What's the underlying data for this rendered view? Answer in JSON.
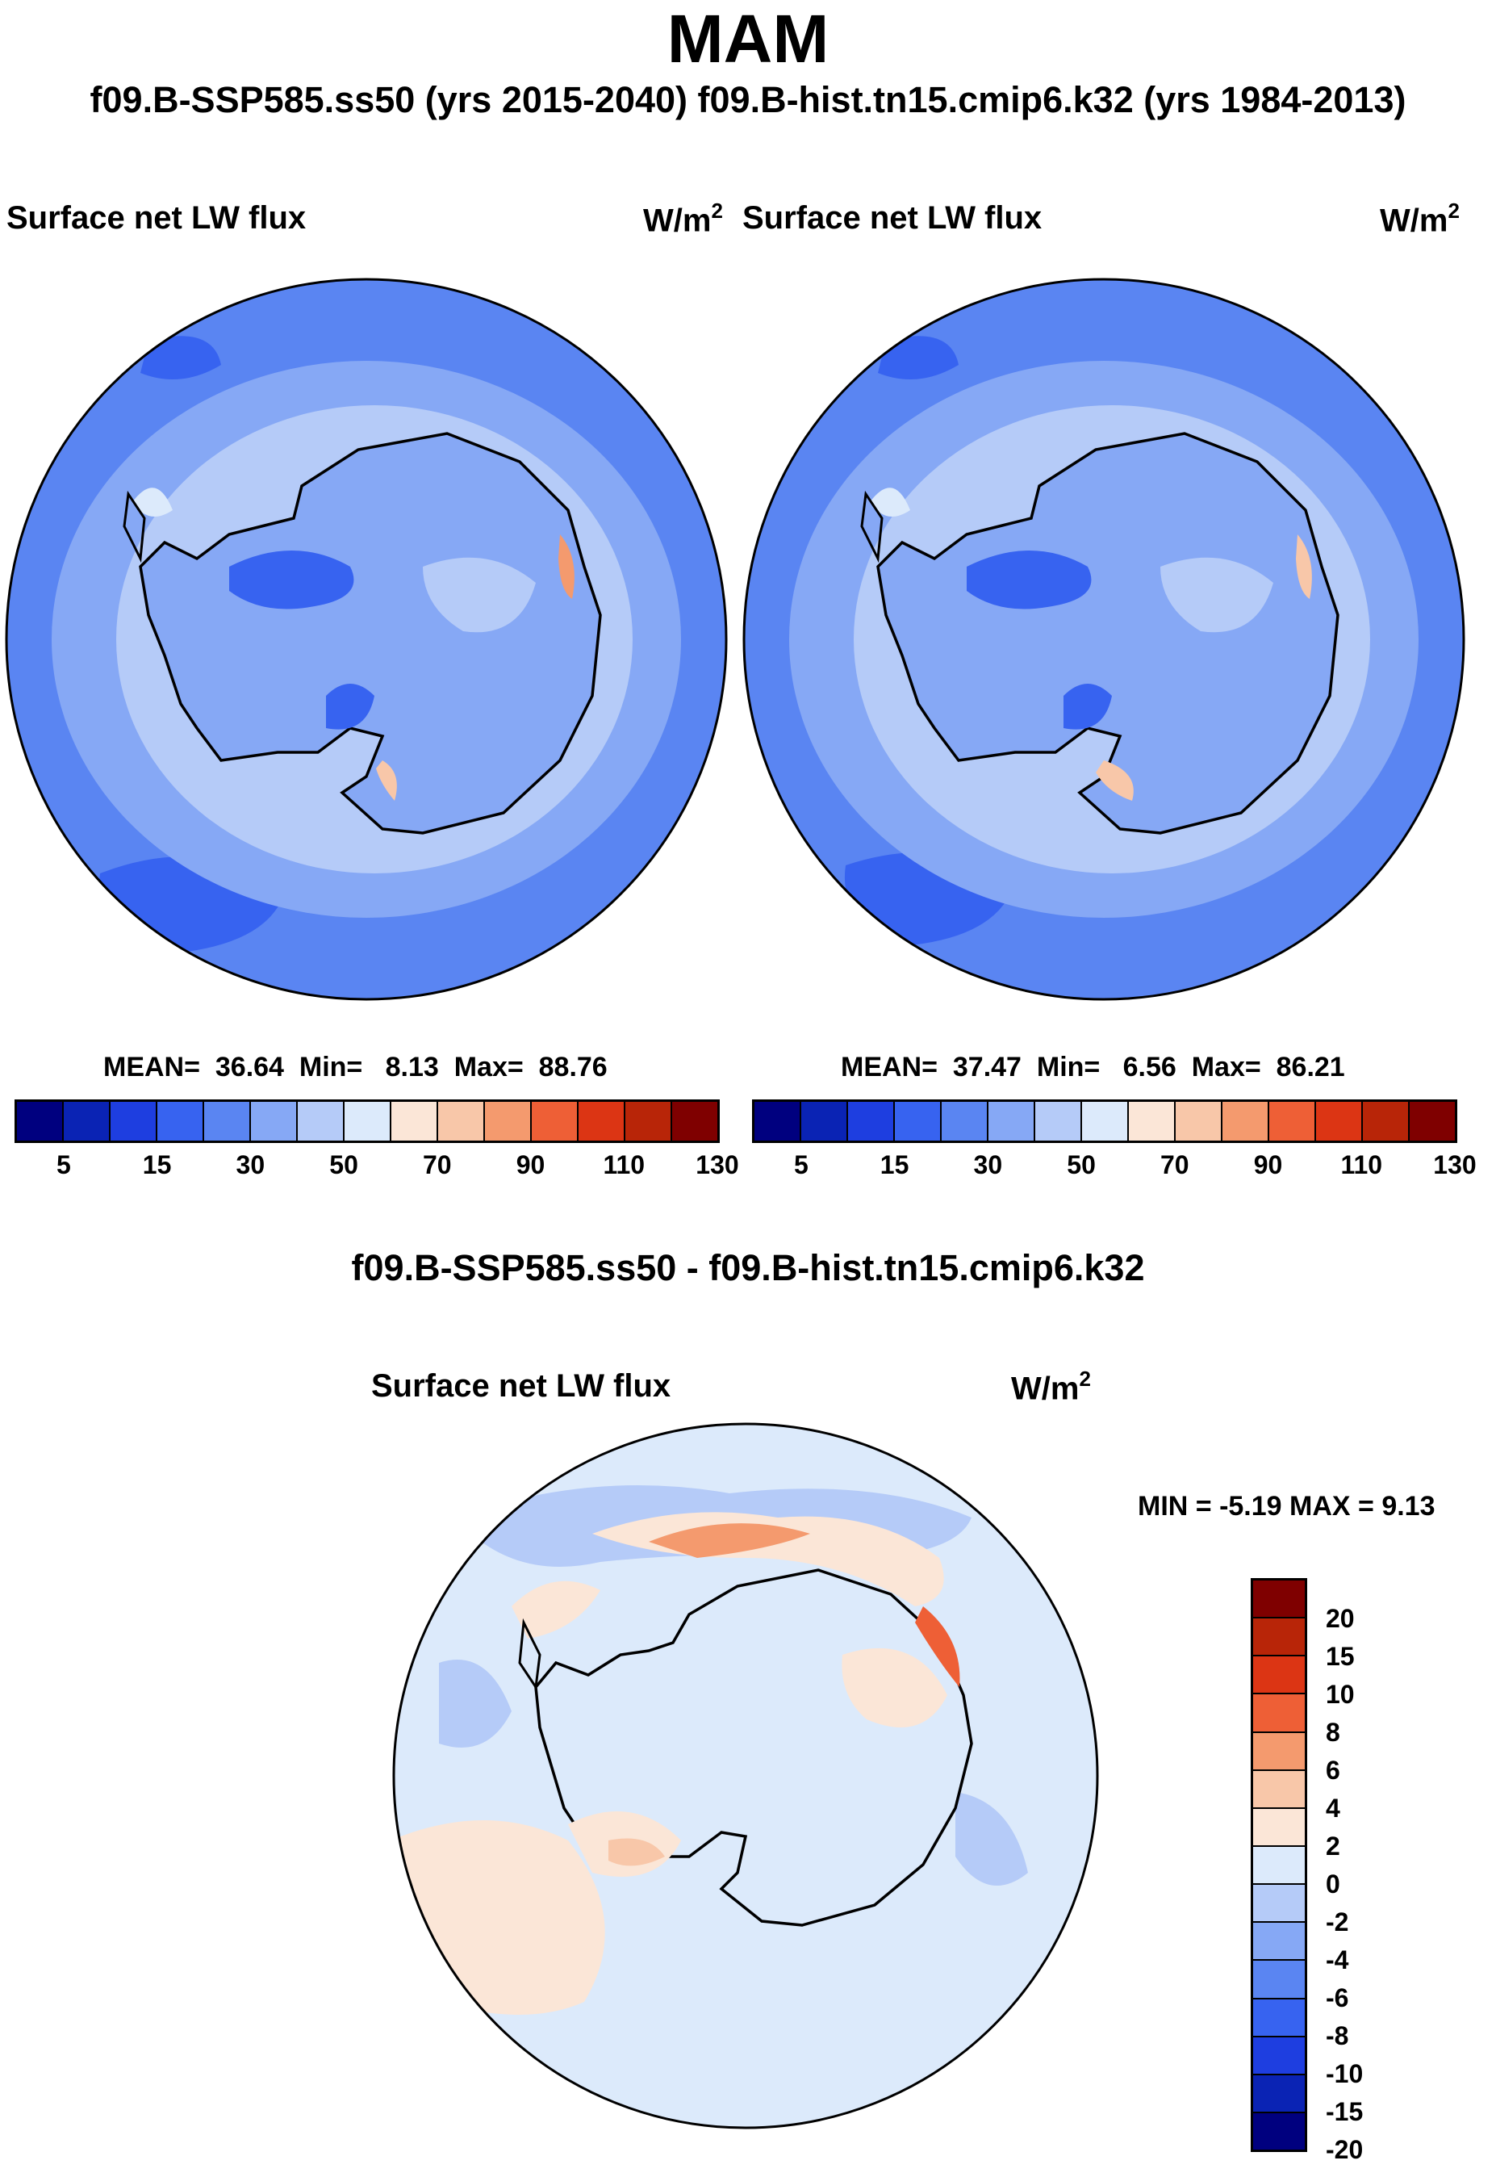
{
  "title": "MAM",
  "subtitle": "f09.B-SSP585.ss50 (yrs 2015-2040)  f09.B-hist.tn15.cmip6.k32 (yrs 1984-2013)",
  "unit_base": "W/m",
  "unit_exp": "2",
  "panels": [
    {
      "label": "Surface net LW flux",
      "stats": {
        "mean_label": "MEAN=",
        "mean": "36.64",
        "min_label": "Min=",
        "min": "8.13",
        "max_label": "Max=",
        "max": "88.76"
      }
    },
    {
      "label": "Surface net LW flux",
      "stats": {
        "mean_label": "MEAN=",
        "mean": "37.47",
        "min_label": "Min=",
        "min": "6.56",
        "max_label": "Max=",
        "max": "86.21"
      }
    }
  ],
  "diff": {
    "title": "f09.B-SSP585.ss50 - f09.B-hist.tn15.cmip6.k32",
    "label": "Surface net LW flux",
    "minmax": "MIN =  -5.19 MAX =   9.13"
  },
  "colorbar_abs": {
    "ticks": [
      "5",
      "15",
      "30",
      "50",
      "70",
      "90",
      "110",
      "130"
    ],
    "colors": [
      "#00007f",
      "#0a23b4",
      "#1e3ee0",
      "#3763f0",
      "#5a85f2",
      "#86a8f5",
      "#b5cbf8",
      "#dceafb",
      "#fbe6d7",
      "#f8c7a9",
      "#f49a6e",
      "#ee5f36",
      "#dc3514",
      "#b82508",
      "#7f0000"
    ]
  },
  "colorbar_diff": {
    "ticks": [
      "20",
      "15",
      "10",
      "8",
      "6",
      "4",
      "2",
      "0",
      "-2",
      "-4",
      "-6",
      "-8",
      "-10",
      "-15",
      "-20"
    ],
    "colors": [
      "#7f0000",
      "#b82508",
      "#dc3514",
      "#ee5f36",
      "#f49a6e",
      "#f8c7a9",
      "#fbe6d7",
      "#dceafb",
      "#b5cbf8",
      "#86a8f5",
      "#5a85f2",
      "#3763f0",
      "#1e3ee0",
      "#0a23b4",
      "#00007f"
    ]
  }
}
